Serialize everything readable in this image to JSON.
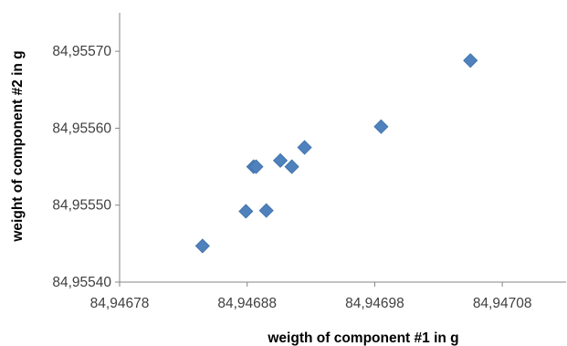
{
  "chart_data": {
    "type": "scatter",
    "title": "",
    "xlabel": "weigth of component #1 in g",
    "ylabel": "weight of component #2 in g",
    "xlim": [
      84.94678,
      84.94713
    ],
    "ylim": [
      84.9554,
      84.95575
    ],
    "x_ticks": [
      "84,94678",
      "84,94688",
      "84,94698",
      "84,94708"
    ],
    "x_tick_values": [
      84.94678,
      84.94688,
      84.94698,
      84.94708
    ],
    "y_ticks": [
      "84,95540",
      "84,95550",
      "84,95560",
      "84,95570"
    ],
    "y_tick_values": [
      84.9554,
      84.9555,
      84.9556,
      84.9557
    ],
    "grid": false,
    "legend": "none",
    "marker": "diamond",
    "marker_color": "#4f81bd",
    "errorbar_color": "#000000",
    "points": [
      {
        "x": 84.946845,
        "y": 84.955447,
        "xerr": 2.5e-06,
        "yerr": 1.5e-06
      },
      {
        "x": 84.946879,
        "y": 84.955492,
        "xerr": 2.5e-06,
        "yerr": 1.7e-06
      },
      {
        "x": 84.946885,
        "y": 84.95555,
        "xerr": 1e-06,
        "yerr": 8e-07
      },
      {
        "x": 84.946887,
        "y": 84.95555,
        "xerr": 1e-06,
        "yerr": 1.5e-06
      },
      {
        "x": 84.946895,
        "y": 84.955493,
        "xerr": 2.5e-06,
        "yerr": 2.6e-06
      },
      {
        "x": 84.946906,
        "y": 84.955558,
        "xerr": 2.5e-06,
        "yerr": 1.7e-06
      },
      {
        "x": 84.946915,
        "y": 84.95555,
        "xerr": 1.7e-06,
        "yerr": 2.3e-06
      },
      {
        "x": 84.946925,
        "y": 84.955575,
        "xerr": 1.7e-06,
        "yerr": 2e-06
      },
      {
        "x": 84.946985,
        "y": 84.955602,
        "xerr": 1e-06,
        "yerr": 1.8e-06
      },
      {
        "x": 84.947055,
        "y": 84.955688,
        "xerr": 1.4e-06,
        "yerr": 2.5e-06
      }
    ]
  }
}
